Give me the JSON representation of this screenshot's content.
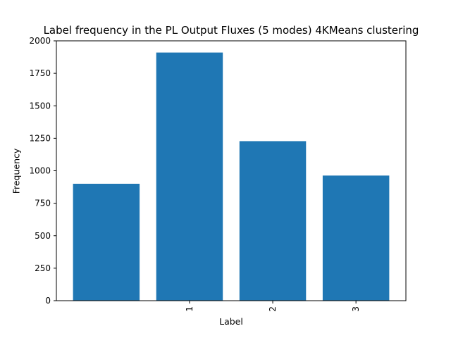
{
  "chart_data": {
    "type": "bar",
    "title": "Label frequency in the PL Output Fluxes (5 modes) 4KMeans clustering",
    "xlabel": "Label",
    "ylabel": "Frequency",
    "categories": [
      0,
      1,
      2,
      3
    ],
    "x_tick_labels": [
      "",
      "1",
      "2",
      "3"
    ],
    "x_tick_rotation": 90,
    "values": [
      900,
      1910,
      1228,
      963
    ],
    "ylim": [
      0,
      2000
    ],
    "yticks": [
      0,
      250,
      500,
      750,
      1000,
      1250,
      1500,
      1750,
      2000
    ],
    "bar_color": "#1f77b4",
    "grid": false,
    "legend": null
  }
}
